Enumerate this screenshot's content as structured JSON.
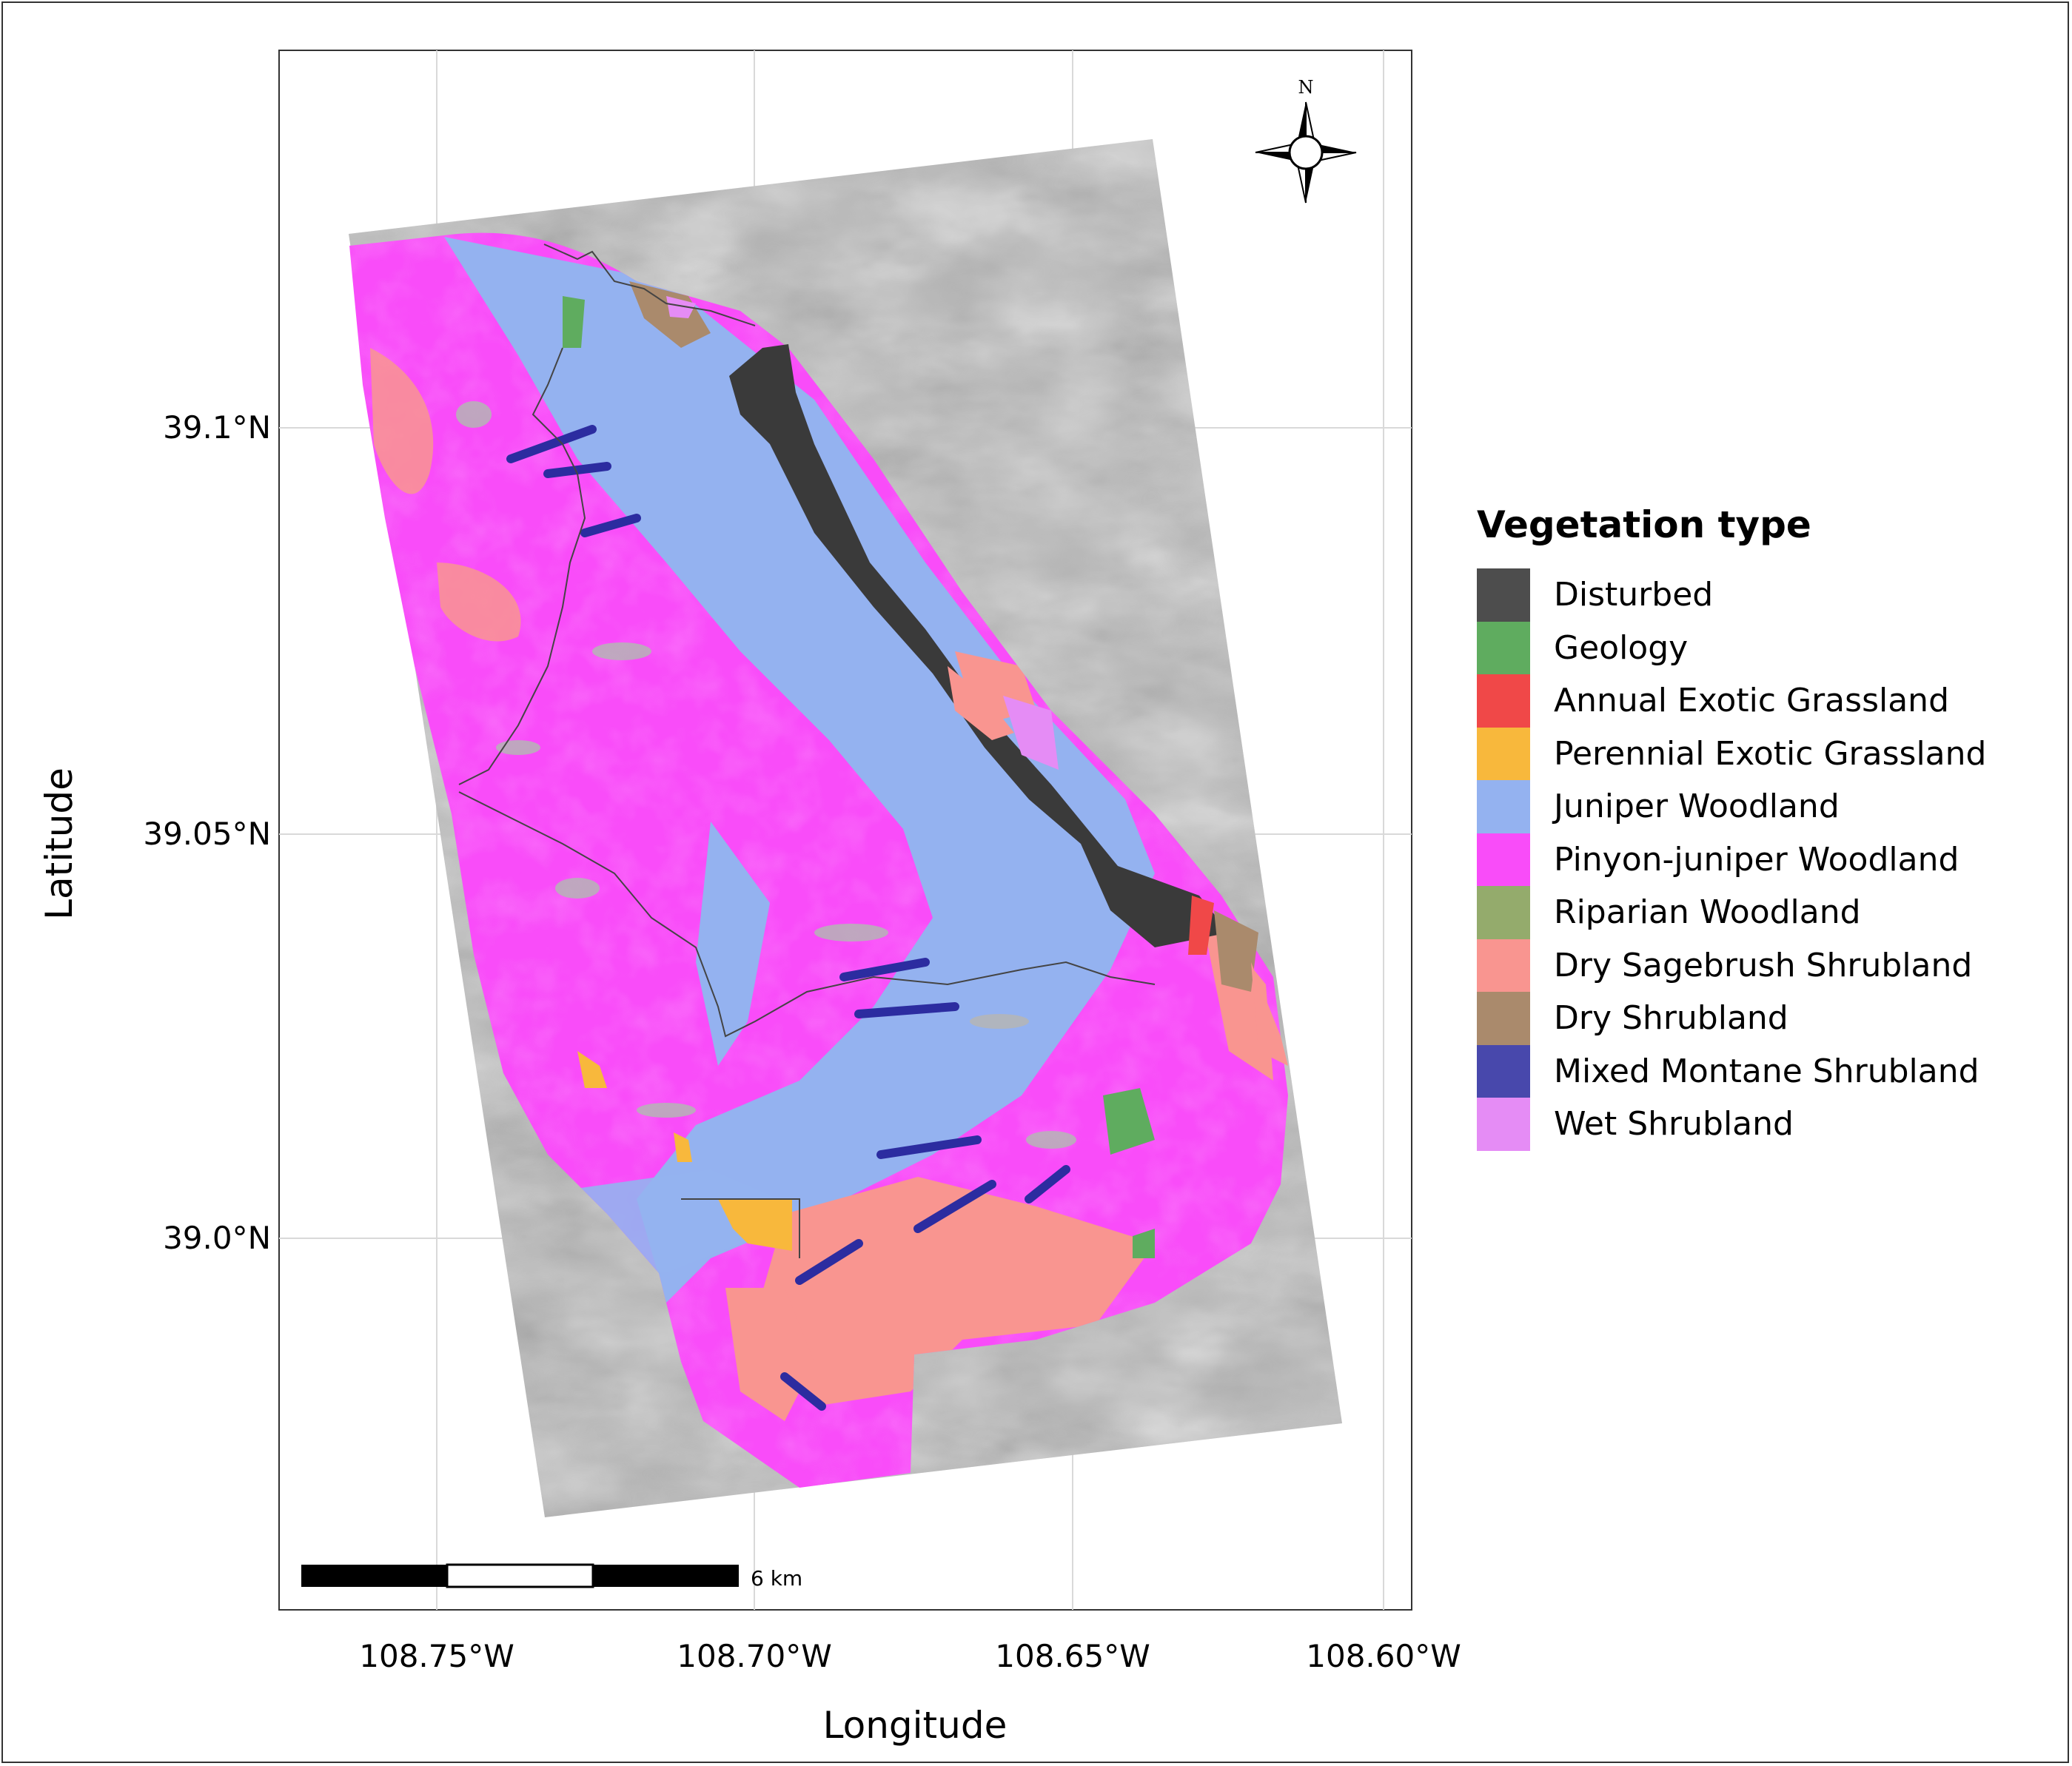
{
  "map": {
    "xlabel": "Longitude",
    "ylabel": "Latitude",
    "x_ticks": [
      "108.75°W",
      "108.70°W",
      "108.65°W",
      "108.60°W"
    ],
    "y_ticks": [
      "39.1°N",
      "39.05°N",
      "39.0°N"
    ],
    "north_arrow_label": "N",
    "scale_bar_label": "6 km",
    "basemap": "hillshade",
    "grid": true
  },
  "legend": {
    "title": "Vegetation type",
    "items": [
      {
        "label": "Disturbed",
        "color": "#4d4d4d"
      },
      {
        "label": "Geology",
        "color": "#5fac5f"
      },
      {
        "label": "Annual Exotic Grassland",
        "color": "#f04848"
      },
      {
        "label": "Perennial Exotic Grassland",
        "color": "#f8b83c"
      },
      {
        "label": "Juniper Woodland",
        "color": "#94b2f0"
      },
      {
        "label": "Pinyon-juniper Woodland",
        "color": "#f94cf9"
      },
      {
        "label": "Riparian Woodland",
        "color": "#94ab6c"
      },
      {
        "label": "Dry Sagebrush Shrubland",
        "color": "#f99590"
      },
      {
        "label": "Dry Shrubland",
        "color": "#aa8a6c"
      },
      {
        "label": "Mixed Montane Shrubland",
        "color": "#4848ac"
      },
      {
        "label": "Wet Shrubland",
        "color": "#e58cf5"
      }
    ]
  }
}
